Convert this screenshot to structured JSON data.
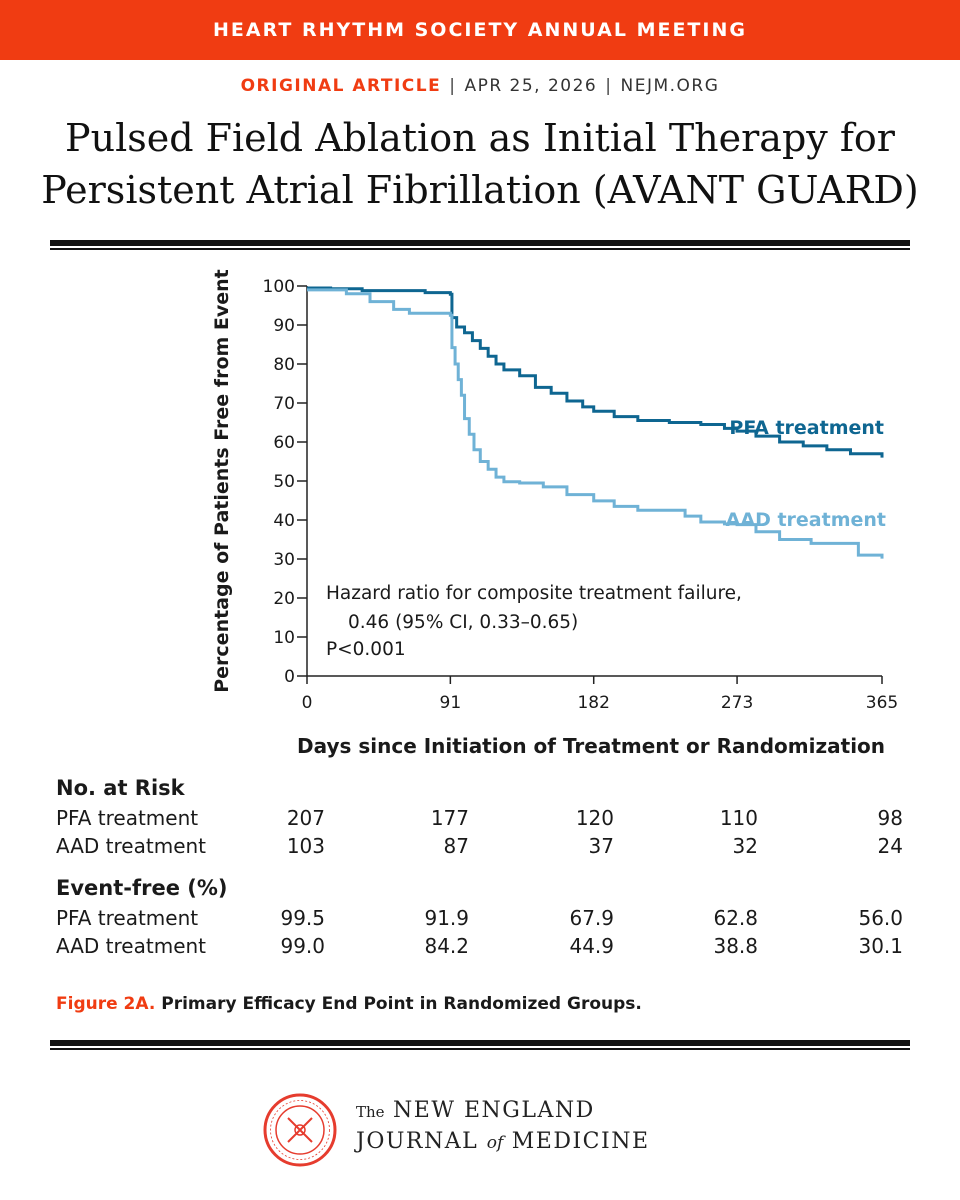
{
  "banner": {
    "text": "HEART RHYTHM SOCIETY ANNUAL MEETING"
  },
  "meta": {
    "type": "ORIGINAL ARTICLE",
    "date": "APR 25, 2026",
    "site": "NEJM.ORG"
  },
  "article": {
    "title_line1": "Pulsed Field Ablation as Initial Therapy for",
    "title_line2": "Persistent Atrial Fibrillation (AVANT GUARD)"
  },
  "colors": {
    "accent": "#f03c12",
    "pfa": "#0e6691",
    "aad": "#6fb2d6"
  },
  "chart_data": {
    "type": "line",
    "xlabel": "Days since Initiation of Treatment or Randomization",
    "ylabel": "Percentage of Patients Free from Event",
    "xlim": [
      0,
      365
    ],
    "ylim": [
      0,
      100
    ],
    "xticks": [
      0,
      91,
      182,
      273,
      365
    ],
    "yticks": [
      0,
      10,
      20,
      30,
      40,
      50,
      60,
      70,
      80,
      90,
      100
    ],
    "series": [
      {
        "name": "PFA treatment",
        "x": [
          0,
          15,
          35,
          75,
          91,
          92,
          95,
          100,
          105,
          110,
          115,
          120,
          125,
          135,
          145,
          155,
          165,
          175,
          182,
          195,
          210,
          230,
          250,
          265,
          273,
          285,
          300,
          315,
          330,
          345,
          365
        ],
        "y": [
          99.5,
          99.3,
          98.8,
          98.3,
          97.9,
          91.9,
          89.5,
          88.0,
          86.0,
          84.0,
          82.0,
          80.0,
          78.5,
          77.0,
          74.0,
          72.5,
          70.5,
          69.0,
          67.9,
          66.5,
          65.5,
          65.0,
          64.5,
          63.5,
          62.8,
          61.5,
          60.0,
          59.0,
          58.0,
          57.0,
          56.0
        ]
      },
      {
        "name": "AAD treatment",
        "x": [
          0,
          25,
          40,
          55,
          65,
          91,
          92,
          94,
          96,
          98,
          100,
          103,
          106,
          110,
          115,
          120,
          125,
          135,
          150,
          165,
          182,
          195,
          210,
          230,
          240,
          250,
          265,
          273,
          285,
          300,
          320,
          340,
          350,
          365
        ],
        "y": [
          99.0,
          98.0,
          96.0,
          94.0,
          93.0,
          92.5,
          84.2,
          80.0,
          76.0,
          72.0,
          66.0,
          62.0,
          58.0,
          55.0,
          53.0,
          51.0,
          49.8,
          49.5,
          48.5,
          46.5,
          44.9,
          43.5,
          42.5,
          42.5,
          41.0,
          39.5,
          39.0,
          38.8,
          37.0,
          35.0,
          34.0,
          34.0,
          31.0,
          30.1
        ]
      }
    ],
    "annotation": {
      "line1": "Hazard ratio for composite treatment failure,",
      "line2": "0.46 (95% CI, 0.33–0.65)",
      "line3": "P<0.001"
    }
  },
  "risk_table": {
    "no_at_risk_header": "No. at Risk",
    "event_free_header": "Event-free (%)",
    "no_at_risk": [
      {
        "label": "PFA treatment",
        "values": [
          "207",
          "177",
          "120",
          "110",
          "98"
        ]
      },
      {
        "label": "AAD treatment",
        "values": [
          "103",
          "87",
          "37",
          "32",
          "24"
        ]
      }
    ],
    "event_free": [
      {
        "label": "PFA treatment",
        "values": [
          "99.5",
          "91.9",
          "67.9",
          "62.8",
          "56.0"
        ]
      },
      {
        "label": "AAD treatment",
        "values": [
          "99.0",
          "84.2",
          "44.9",
          "38.8",
          "30.1"
        ]
      }
    ]
  },
  "caption": {
    "label": "Figure 2A.",
    "text": "Primary Efficacy End Point in Randomized Groups."
  },
  "journal": {
    "the": "The",
    "line1": "NEW ENGLAND",
    "line2a": "JOURNAL",
    "of": "of",
    "line2b": "MEDICINE"
  }
}
